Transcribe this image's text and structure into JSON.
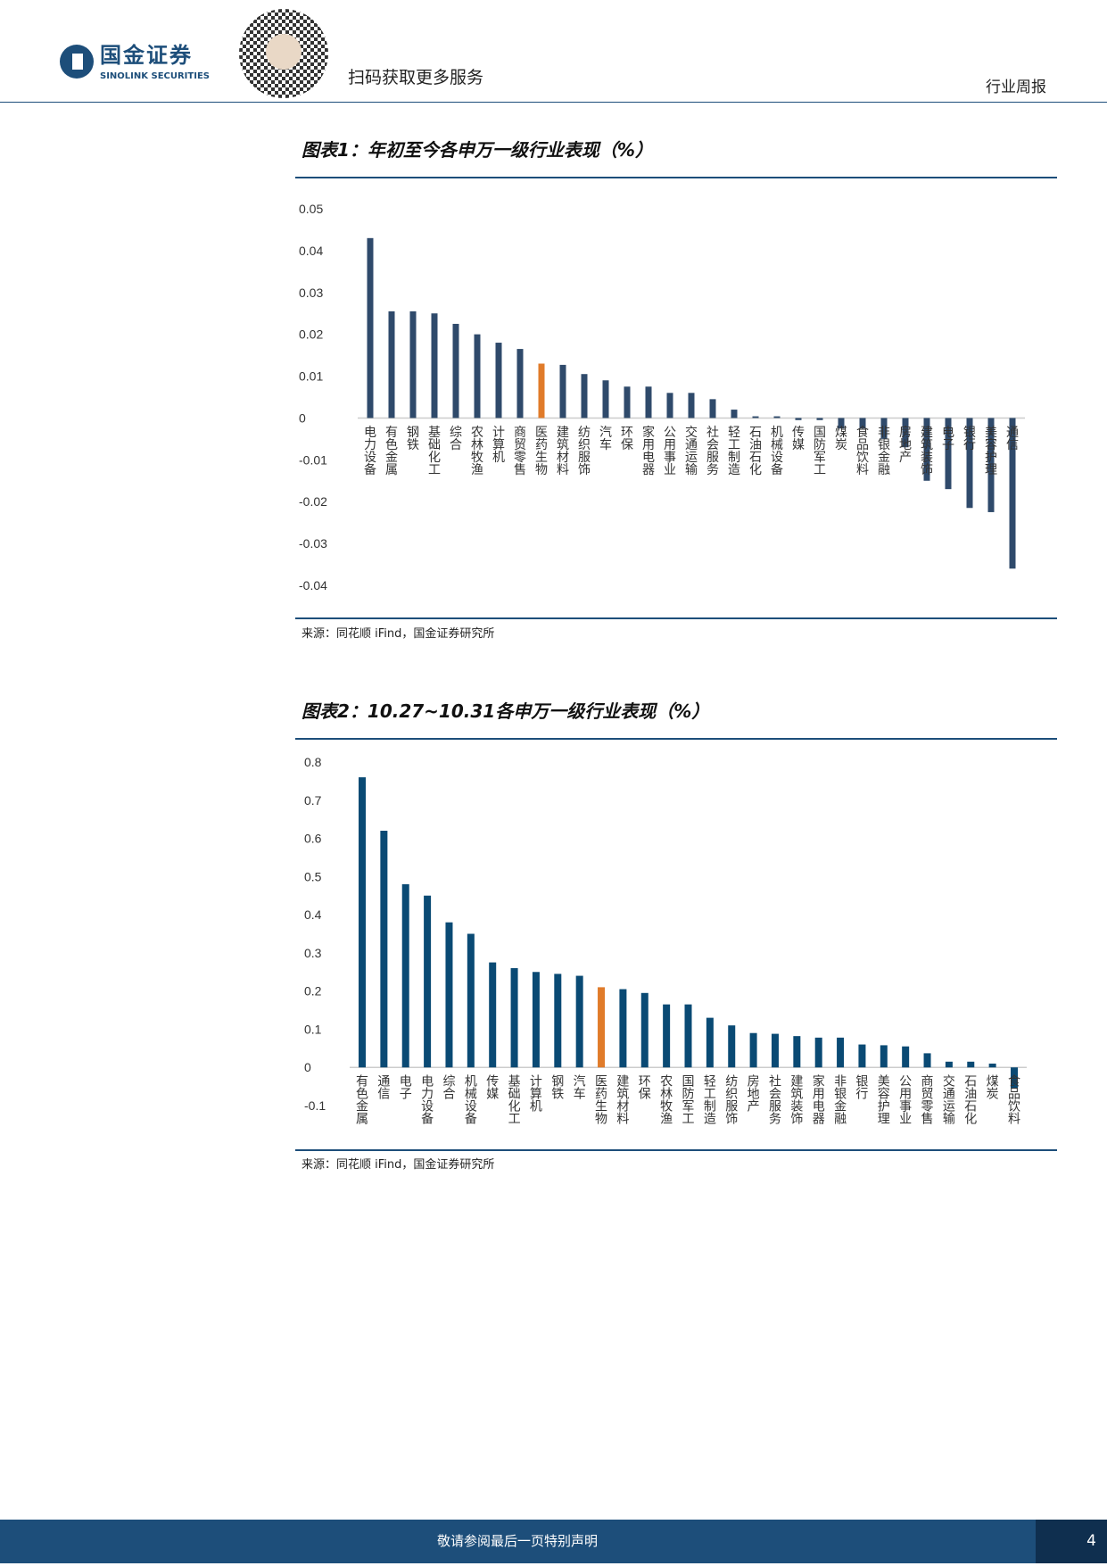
{
  "header": {
    "logo_cn": "国金证券",
    "logo_en": "SINOLINK SECURITIES",
    "qr_caption": "扫码获取更多服务",
    "doc_type": "行业周报"
  },
  "figures": [
    {
      "title": "图表1：年初至今各申万一级行业表现（%）",
      "source": "来源：同花顺 iFind，国金证券研究所"
    },
    {
      "title": "图表2：10.27~10.31各申万一级行业表现（%）",
      "source": "来源：同花顺 iFind，国金证券研究所"
    }
  ],
  "colors": {
    "bar1": "#2f4a6b",
    "bar2": "#0a4a74",
    "highlight": "#e07b2a"
  },
  "chart_data": [
    {
      "type": "bar",
      "title": "图表1：年初至今各申万一级行业表现（%）",
      "highlight": "医药生物",
      "ylim": [
        -0.04,
        0.05
      ],
      "yticks": [
        "0.05",
        "0.04",
        "0.03",
        "0.02",
        "0.01",
        "0",
        "-0.01",
        "-0.02",
        "-0.03",
        "-0.04"
      ],
      "categories": [
        "电力设备",
        "有色金属",
        "钢铁",
        "基础化工",
        "综合",
        "农林牧渔",
        "计算机",
        "商贸零售",
        "医药生物",
        "建筑材料",
        "纺织服饰",
        "汽车",
        "环保",
        "家用电器",
        "公用事业",
        "交通运输",
        "社会服务",
        "轻工制造",
        "石油石化",
        "机械设备",
        "传媒",
        "国防军工",
        "煤炭",
        "食品饮料",
        "非银金融",
        "房地产",
        "建筑装饰",
        "电子",
        "银行",
        "美容护理",
        "通信"
      ],
      "values": [
        0.043,
        0.0255,
        0.0255,
        0.025,
        0.0225,
        0.02,
        0.018,
        0.0165,
        0.013,
        0.0127,
        0.0105,
        0.009,
        0.0075,
        0.0075,
        0.006,
        0.006,
        0.0045,
        0.002,
        0.0004,
        0.0004,
        -0.0005,
        -0.0005,
        -0.0025,
        -0.0025,
        -0.005,
        -0.007,
        -0.015,
        -0.017,
        -0.0215,
        -0.0225,
        -0.036
      ]
    },
    {
      "type": "bar",
      "title": "图表2：10.27~10.31各申万一级行业表现（%）",
      "highlight": "医药生物",
      "ylim": [
        -0.1,
        0.8
      ],
      "yticks": [
        "0.8",
        "0.7",
        "0.6",
        "0.5",
        "0.4",
        "0.3",
        "0.2",
        "0.1",
        "0",
        "-0.1"
      ],
      "categories": [
        "有色金属",
        "通信",
        "电子",
        "电力设备",
        "综合",
        "机械设备",
        "传媒",
        "基础化工",
        "计算机",
        "钢铁",
        "汽车",
        "医药生物",
        "建筑材料",
        "环保",
        "农林牧渔",
        "国防军工",
        "轻工制造",
        "纺织服饰",
        "房地产",
        "社会服务",
        "建筑装饰",
        "家用电器",
        "非银金融",
        "银行",
        "美容护理",
        "公用事业",
        "商贸零售",
        "交通运输",
        "石油石化",
        "煤炭",
        "食品饮料"
      ],
      "values": [
        0.76,
        0.62,
        0.48,
        0.45,
        0.38,
        0.35,
        0.275,
        0.26,
        0.25,
        0.245,
        0.24,
        0.21,
        0.205,
        0.195,
        0.165,
        0.165,
        0.13,
        0.11,
        0.09,
        0.088,
        0.082,
        0.078,
        0.078,
        0.06,
        0.058,
        0.055,
        0.037,
        0.015,
        0.015,
        0.01,
        -0.055
      ]
    }
  ],
  "footer": {
    "disclaimer": "敬请参阅最后一页特别声明",
    "page": "4"
  }
}
